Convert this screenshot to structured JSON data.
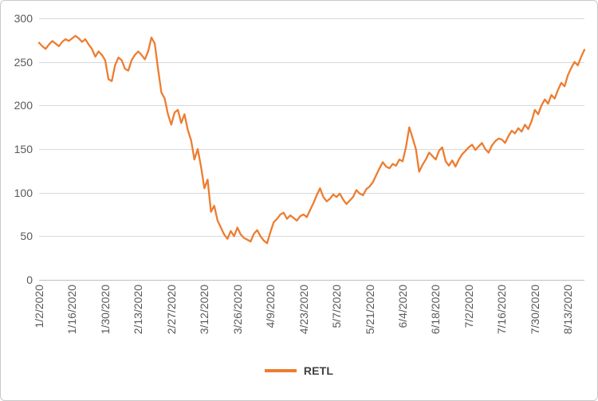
{
  "chart": {
    "colors": {
      "line": "#ED7D31",
      "gridline": "#D9D9D9",
      "axis_line": "#BFBFBF",
      "axis_label": "#595959",
      "legend_text": "#404040",
      "background": "#FFFFFF",
      "border": "#C9C9C9"
    },
    "legend": {
      "label": "RETL"
    }
  },
  "chart_data": {
    "type": "line",
    "title": "",
    "xlabel": "",
    "ylabel": "",
    "ylim": [
      0,
      300
    ],
    "y_ticks": [
      0,
      50,
      100,
      150,
      200,
      250,
      300
    ],
    "grid": true,
    "legend_position": "bottom",
    "x_tick_interval": 10,
    "x_tick_labels": [
      "1/2/2020",
      "1/16/2020",
      "1/30/2020",
      "2/13/2020",
      "2/27/2020",
      "3/12/2020",
      "3/26/2020",
      "4/9/2020",
      "4/23/2020",
      "5/7/2020",
      "5/21/2020",
      "6/4/2020",
      "6/18/2020",
      "7/2/2020",
      "7/16/2020",
      "7/30/2020",
      "8/13/2020"
    ],
    "series": [
      {
        "name": "RETL",
        "color": "#ED7D31",
        "values": [
          272,
          268,
          265,
          270,
          274,
          271,
          268,
          273,
          276,
          274,
          277,
          280,
          277,
          273,
          276,
          270,
          265,
          256,
          262,
          258,
          252,
          230,
          228,
          246,
          255,
          252,
          242,
          240,
          252,
          258,
          262,
          258,
          253,
          262,
          278,
          271,
          242,
          215,
          208,
          190,
          178,
          192,
          195,
          180,
          190,
          172,
          160,
          138,
          150,
          130,
          105,
          115,
          78,
          85,
          68,
          60,
          52,
          47,
          56,
          50,
          60,
          52,
          48,
          46,
          44,
          53,
          57,
          50,
          45,
          42,
          55,
          66,
          70,
          75,
          77,
          70,
          74,
          71,
          68,
          73,
          75,
          72,
          80,
          88,
          97,
          105,
          95,
          90,
          93,
          98,
          95,
          99,
          92,
          87,
          91,
          95,
          103,
          99,
          97,
          104,
          107,
          112,
          120,
          128,
          135,
          130,
          128,
          133,
          131,
          138,
          136,
          152,
          175,
          163,
          150,
          124,
          132,
          138,
          146,
          142,
          138,
          148,
          152,
          136,
          131,
          137,
          130,
          138,
          144,
          148,
          152,
          155,
          149,
          153,
          157,
          150,
          146,
          154,
          159,
          162,
          161,
          157,
          165,
          171,
          168,
          174,
          170,
          178,
          173,
          182,
          195,
          190,
          200,
          207,
          202,
          212,
          208,
          218,
          226,
          222,
          235,
          243,
          250,
          246,
          256,
          264
        ]
      }
    ]
  }
}
